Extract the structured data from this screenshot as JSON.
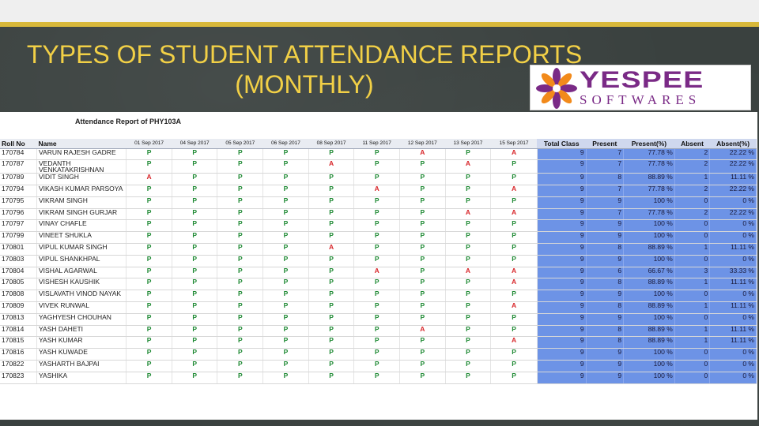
{
  "slide": {
    "title_line1": "TYPES OF STUDENT ATTENDANCE REPORTS",
    "title_line2": "(MONTHLY)",
    "logo_word": "YESPEE",
    "logo_sub": "SOFTWARES"
  },
  "report": {
    "title": "Attendance Report of PHY103A",
    "headers": {
      "roll": "Roll No",
      "name": "Name",
      "dates": [
        "01 Sep 2017",
        "04 Sep 2017",
        "05 Sep 2017",
        "06 Sep 2017",
        "08 Sep 2017",
        "11 Sep 2017",
        "12 Sep 2017",
        "13 Sep 2017",
        "15 Sep 2017"
      ],
      "total": "Total Class",
      "present": "Present",
      "present_pct": "Present(%)",
      "absent": "Absent",
      "absent_pct": "Absent(%)"
    },
    "rows": [
      {
        "roll": "170784",
        "name": "VARUN RAJESH GADRE",
        "marks": [
          "P",
          "P",
          "P",
          "P",
          "P",
          "P",
          "A",
          "P",
          "A"
        ],
        "total": "9",
        "present": "7",
        "present_pct": "77.78 %",
        "absent": "2",
        "absent_pct": "22.22 %"
      },
      {
        "roll": "170787",
        "name": "VEDANTH VENKATAKRISHNAN",
        "marks": [
          "P",
          "P",
          "P",
          "P",
          "A",
          "P",
          "P",
          "A",
          "P"
        ],
        "total": "9",
        "present": "7",
        "present_pct": "77.78 %",
        "absent": "2",
        "absent_pct": "22.22 %"
      },
      {
        "roll": "170789",
        "name": "VIDIT SINGH",
        "marks": [
          "A",
          "P",
          "P",
          "P",
          "P",
          "P",
          "P",
          "P",
          "P"
        ],
        "total": "9",
        "present": "8",
        "present_pct": "88.89 %",
        "absent": "1",
        "absent_pct": "11.11 %"
      },
      {
        "roll": "170794",
        "name": "VIKASH KUMAR PARSOYA",
        "marks": [
          "P",
          "P",
          "P",
          "P",
          "P",
          "A",
          "P",
          "P",
          "A"
        ],
        "total": "9",
        "present": "7",
        "present_pct": "77.78 %",
        "absent": "2",
        "absent_pct": "22.22 %"
      },
      {
        "roll": "170795",
        "name": "VIKRAM SINGH",
        "marks": [
          "P",
          "P",
          "P",
          "P",
          "P",
          "P",
          "P",
          "P",
          "P"
        ],
        "total": "9",
        "present": "9",
        "present_pct": "100 %",
        "absent": "0",
        "absent_pct": "0 %"
      },
      {
        "roll": "170796",
        "name": "VIKRAM SINGH GURJAR",
        "marks": [
          "P",
          "P",
          "P",
          "P",
          "P",
          "P",
          "P",
          "A",
          "A"
        ],
        "total": "9",
        "present": "7",
        "present_pct": "77.78 %",
        "absent": "2",
        "absent_pct": "22.22 %"
      },
      {
        "roll": "170797",
        "name": "VINAY CHAFLE",
        "marks": [
          "P",
          "P",
          "P",
          "P",
          "P",
          "P",
          "P",
          "P",
          "P"
        ],
        "total": "9",
        "present": "9",
        "present_pct": "100 %",
        "absent": "0",
        "absent_pct": "0 %"
      },
      {
        "roll": "170799",
        "name": "VINEET SHUKLA",
        "marks": [
          "P",
          "P",
          "P",
          "P",
          "P",
          "P",
          "P",
          "P",
          "P"
        ],
        "total": "9",
        "present": "9",
        "present_pct": "100 %",
        "absent": "0",
        "absent_pct": "0 %"
      },
      {
        "roll": "170801",
        "name": "VIPUL KUMAR SINGH",
        "marks": [
          "P",
          "P",
          "P",
          "P",
          "A",
          "P",
          "P",
          "P",
          "P"
        ],
        "total": "9",
        "present": "8",
        "present_pct": "88.89 %",
        "absent": "1",
        "absent_pct": "11.11 %"
      },
      {
        "roll": "170803",
        "name": "VIPUL SHANKHPAL",
        "marks": [
          "P",
          "P",
          "P",
          "P",
          "P",
          "P",
          "P",
          "P",
          "P"
        ],
        "total": "9",
        "present": "9",
        "present_pct": "100 %",
        "absent": "0",
        "absent_pct": "0 %"
      },
      {
        "roll": "170804",
        "name": "VISHAL AGARWAL",
        "marks": [
          "P",
          "P",
          "P",
          "P",
          "P",
          "A",
          "P",
          "A",
          "A"
        ],
        "total": "9",
        "present": "6",
        "present_pct": "66.67 %",
        "absent": "3",
        "absent_pct": "33.33 %"
      },
      {
        "roll": "170805",
        "name": "VISHESH KAUSHIK",
        "marks": [
          "P",
          "P",
          "P",
          "P",
          "P",
          "P",
          "P",
          "P",
          "A"
        ],
        "total": "9",
        "present": "8",
        "present_pct": "88.89 %",
        "absent": "1",
        "absent_pct": "11.11 %"
      },
      {
        "roll": "170808",
        "name": "VISLAVATH VINOD NAYAK",
        "marks": [
          "P",
          "P",
          "P",
          "P",
          "P",
          "P",
          "P",
          "P",
          "P"
        ],
        "total": "9",
        "present": "9",
        "present_pct": "100 %",
        "absent": "0",
        "absent_pct": "0 %"
      },
      {
        "roll": "170809",
        "name": "VIVEK RUNWAL",
        "marks": [
          "P",
          "P",
          "P",
          "P",
          "P",
          "P",
          "P",
          "P",
          "A"
        ],
        "total": "9",
        "present": "8",
        "present_pct": "88.89 %",
        "absent": "1",
        "absent_pct": "11.11 %"
      },
      {
        "roll": "170813",
        "name": "YAGHYESH CHOUHAN",
        "marks": [
          "P",
          "P",
          "P",
          "P",
          "P",
          "P",
          "P",
          "P",
          "P"
        ],
        "total": "9",
        "present": "9",
        "present_pct": "100 %",
        "absent": "0",
        "absent_pct": "0 %"
      },
      {
        "roll": "170814",
        "name": "YASH DAHETI",
        "marks": [
          "P",
          "P",
          "P",
          "P",
          "P",
          "P",
          "A",
          "P",
          "P"
        ],
        "total": "9",
        "present": "8",
        "present_pct": "88.89 %",
        "absent": "1",
        "absent_pct": "11.11 %"
      },
      {
        "roll": "170815",
        "name": "YASH KUMAR",
        "marks": [
          "P",
          "P",
          "P",
          "P",
          "P",
          "P",
          "P",
          "P",
          "A"
        ],
        "total": "9",
        "present": "8",
        "present_pct": "88.89 %",
        "absent": "1",
        "absent_pct": "11.11 %"
      },
      {
        "roll": "170816",
        "name": "YASH KUWADE",
        "marks": [
          "P",
          "P",
          "P",
          "P",
          "P",
          "P",
          "P",
          "P",
          "P"
        ],
        "total": "9",
        "present": "9",
        "present_pct": "100 %",
        "absent": "0",
        "absent_pct": "0 %"
      },
      {
        "roll": "170822",
        "name": "YASHARTH BAJPAI",
        "marks": [
          "P",
          "P",
          "P",
          "P",
          "P",
          "P",
          "P",
          "P",
          "P"
        ],
        "total": "9",
        "present": "9",
        "present_pct": "100 %",
        "absent": "0",
        "absent_pct": "0 %"
      },
      {
        "roll": "170823",
        "name": "YASHIKA",
        "marks": [
          "P",
          "P",
          "P",
          "P",
          "P",
          "P",
          "P",
          "P",
          "P"
        ],
        "total": "9",
        "present": "9",
        "present_pct": "100 %",
        "absent": "0",
        "absent_pct": "0 %"
      }
    ]
  },
  "colors": {
    "title": "#f2d046",
    "present_mark": "#1f8a34",
    "absent_mark": "#d8272b",
    "summary_bg": "#6d93e6",
    "logo_purple": "#7a2a86",
    "logo_orange": "#f28a1b"
  }
}
